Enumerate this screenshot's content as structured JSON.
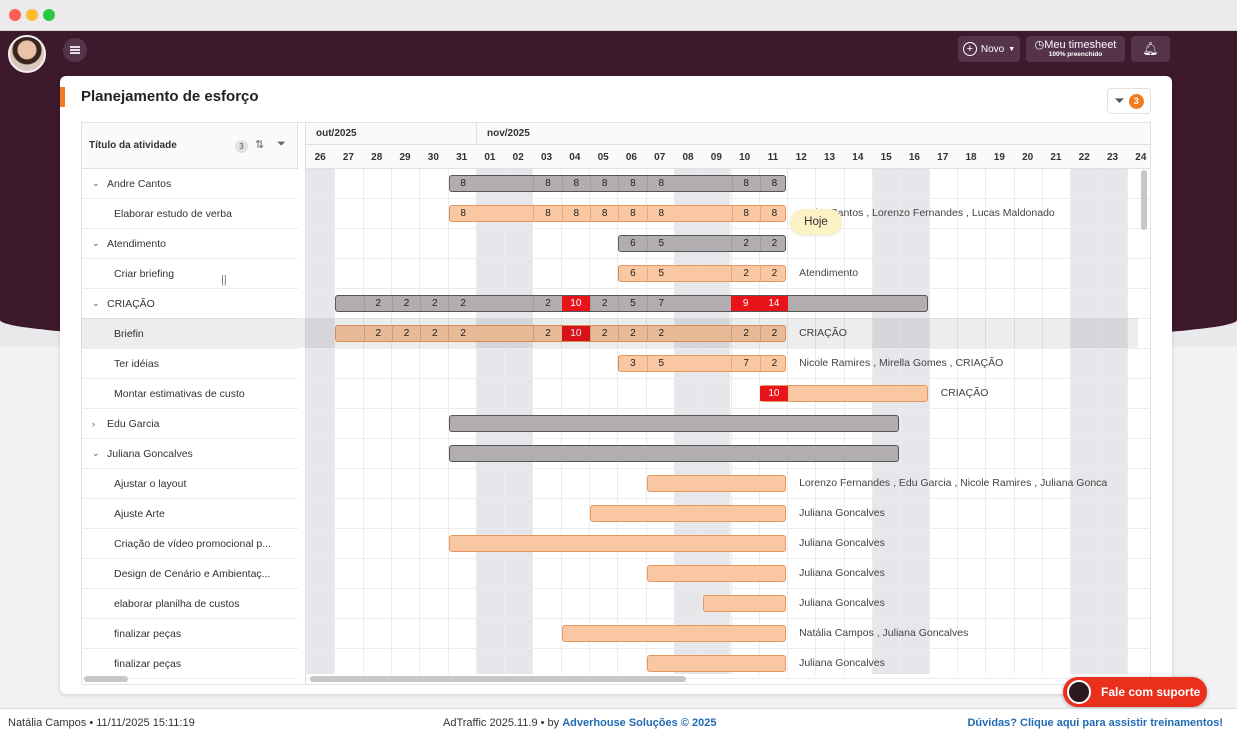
{
  "header": {
    "novo_label": "Novo",
    "timesheet_label": "Meu timesheet",
    "timesheet_sub": "100% preenchido",
    "icons": [
      "menu-icon",
      "plus-circle-icon",
      "clock-icon",
      "bell-icon"
    ]
  },
  "page": {
    "title": "Planejamento de esforço",
    "filter_count": "3",
    "accent_color": "#f07d22"
  },
  "grid": {
    "column_title": "Título da atividade",
    "column_count": "3",
    "months": [
      "out/2025",
      "nov/2025"
    ],
    "days": [
      "26",
      "27",
      "28",
      "29",
      "30",
      "31",
      "01",
      "02",
      "03",
      "04",
      "05",
      "06",
      "07",
      "08",
      "09",
      "10",
      "11",
      "12",
      "13",
      "14",
      "15",
      "16",
      "17",
      "18",
      "19",
      "20",
      "21",
      "22",
      "23",
      "24"
    ],
    "weekend_days": [
      "26",
      "01",
      "02",
      "08",
      "09",
      "15",
      "16",
      "22",
      "23"
    ],
    "today_label": "Hoje",
    "rows": [
      {
        "type": "group",
        "label": "Andre Cantos",
        "expanded": true
      },
      {
        "type": "task",
        "label": "Elaborar estudo de verba",
        "assignees": "Andre Cantos , Lorenzo Fernandes , Lucas Maldonado"
      },
      {
        "type": "group",
        "label": "Atendimento",
        "expanded": true
      },
      {
        "type": "task",
        "label": "Criar briefing",
        "assignees": "Atendimento"
      },
      {
        "type": "group",
        "label": "CRIAÇÃO",
        "expanded": true
      },
      {
        "type": "task",
        "label": "Briefin",
        "assignees": "CRIAÇÃO"
      },
      {
        "type": "task",
        "label": "Ter idéias",
        "assignees": "Nicole Ramires , Mirella Gomes , CRIAÇÃO"
      },
      {
        "type": "task",
        "label": "Montar estimativas de custo",
        "assignees": "CRIAÇÃO"
      },
      {
        "type": "group",
        "label": "Edu Garcia",
        "expanded": false
      },
      {
        "type": "group",
        "label": "Juliana Goncalves",
        "expanded": true
      },
      {
        "type": "task",
        "label": "Ajustar o layout",
        "assignees": "Lorenzo Fernandes , Edu Garcia , Nicole Ramires , Juliana Gonca"
      },
      {
        "type": "task",
        "label": "Ajuste Arte",
        "assignees": "Juliana Goncalves"
      },
      {
        "type": "task",
        "label": "Criação de vídeo promocional p...",
        "assignees": "Juliana Goncalves"
      },
      {
        "type": "task",
        "label": "Design de Cenário e Ambientaç...",
        "assignees": "Juliana Goncalves"
      },
      {
        "type": "task",
        "label": "elaborar planilha de custos",
        "assignees": "Juliana Goncalves"
      },
      {
        "type": "task",
        "label": "finalizar peças",
        "assignees": "Natália Campos , Juliana Goncalves"
      },
      {
        "type": "task",
        "label": "finalizar peças",
        "assignees": "Juliana Goncalves"
      }
    ],
    "bars": [
      {
        "row": 0,
        "style": "grey",
        "start": 5,
        "span": 12,
        "cells": [
          [
            0,
            "8"
          ],
          [
            3,
            "8"
          ],
          [
            4,
            "8"
          ],
          [
            5,
            "8"
          ],
          [
            6,
            "8"
          ],
          [
            7,
            "8"
          ],
          [
            10,
            "8"
          ],
          [
            11,
            "8"
          ]
        ]
      },
      {
        "row": 1,
        "style": "peach",
        "start": 5,
        "span": 12,
        "cells": [
          [
            0,
            "8"
          ],
          [
            3,
            "8"
          ],
          [
            4,
            "8"
          ],
          [
            5,
            "8"
          ],
          [
            6,
            "8"
          ],
          [
            7,
            "8"
          ],
          [
            10,
            "8"
          ],
          [
            11,
            "8"
          ]
        ]
      },
      {
        "row": 2,
        "style": "grey",
        "start": 11,
        "span": 6,
        "cells": [
          [
            0,
            "6"
          ],
          [
            1,
            "5"
          ],
          [
            4,
            "2"
          ],
          [
            5,
            "2"
          ]
        ]
      },
      {
        "row": 3,
        "style": "peach",
        "start": 11,
        "span": 6,
        "cells": [
          [
            0,
            "6"
          ],
          [
            1,
            "5"
          ],
          [
            4,
            "2"
          ],
          [
            5,
            "2"
          ]
        ]
      },
      {
        "row": 4,
        "style": "grey",
        "start": 1,
        "span": 21,
        "cells": [
          [
            1,
            "2"
          ],
          [
            2,
            "2"
          ],
          [
            3,
            "2"
          ],
          [
            4,
            "2"
          ],
          [
            7,
            "2"
          ],
          [
            8,
            "10",
            true
          ],
          [
            9,
            "2"
          ],
          [
            10,
            "5"
          ],
          [
            11,
            "7"
          ],
          [
            14,
            "9",
            true
          ],
          [
            15,
            "14",
            true
          ]
        ]
      },
      {
        "row": 5,
        "style": "peach",
        "start": 1,
        "span": 16,
        "cells": [
          [
            1,
            "2"
          ],
          [
            2,
            "2"
          ],
          [
            3,
            "2"
          ],
          [
            4,
            "2"
          ],
          [
            7,
            "2"
          ],
          [
            8,
            "10",
            true
          ],
          [
            9,
            "2"
          ],
          [
            10,
            "2"
          ],
          [
            11,
            "2"
          ],
          [
            14,
            "2"
          ],
          [
            15,
            "2"
          ]
        ]
      },
      {
        "row": 6,
        "style": "peach",
        "start": 11,
        "span": 6,
        "cells": [
          [
            0,
            "3"
          ],
          [
            1,
            "5"
          ],
          [
            4,
            "7"
          ],
          [
            5,
            "2"
          ]
        ]
      },
      {
        "row": 7,
        "style": "peach",
        "start": 16,
        "span": 6,
        "cells": [
          [
            0,
            "10",
            true
          ]
        ]
      },
      {
        "row": 8,
        "style": "grey",
        "start": 5,
        "span": 16,
        "cells": []
      },
      {
        "row": 9,
        "style": "grey",
        "start": 5,
        "span": 16,
        "cells": []
      },
      {
        "row": 10,
        "style": "peach",
        "start": 12,
        "span": 5,
        "cells": []
      },
      {
        "row": 11,
        "style": "peach",
        "start": 10,
        "span": 7,
        "cells": []
      },
      {
        "row": 12,
        "style": "peach",
        "start": 5,
        "span": 12,
        "cells": []
      },
      {
        "row": 13,
        "style": "peach",
        "start": 12,
        "span": 5,
        "cells": []
      },
      {
        "row": 14,
        "style": "peach",
        "start": 14,
        "span": 3,
        "cells": []
      },
      {
        "row": 15,
        "style": "peach",
        "start": 9,
        "span": 8,
        "cells": []
      },
      {
        "row": 16,
        "style": "peach",
        "start": 12,
        "span": 5,
        "cells": []
      }
    ]
  },
  "support": {
    "label": "Fale com suporte"
  },
  "footer": {
    "user_time": "Natália Campos • 11/11/2025 15:11:19",
    "version_prefix": "AdTraffic 2025.11.9 • by ",
    "company": "Adverhouse Soluções © 2025",
    "help_link": "Dúvidas? Clique aqui para assistir treinamentos!"
  }
}
